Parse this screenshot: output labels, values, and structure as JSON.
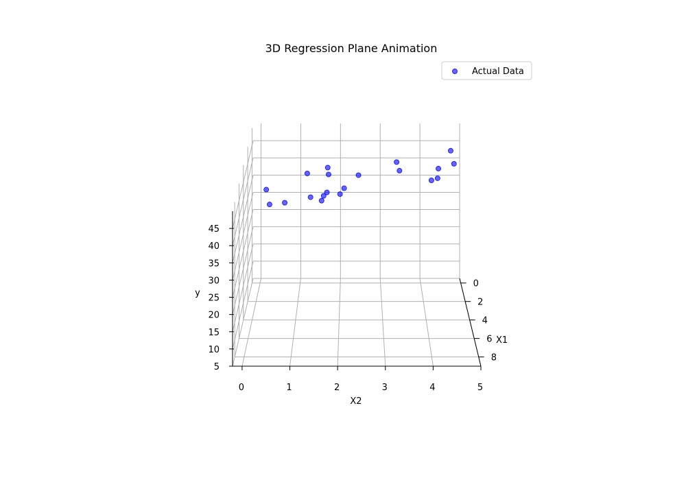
{
  "chart_data": {
    "type": "scatter",
    "projection": "3d",
    "title": "3D Regression Plane Animation",
    "xlabel": "X1",
    "ylabel": "X2",
    "zlabel": "y",
    "xlim": [
      -0.5,
      9
    ],
    "ylim": [
      -0.2,
      5.0
    ],
    "zlim": [
      5,
      50
    ],
    "xticks": [
      "0",
      "2",
      "4",
      "6",
      "8"
    ],
    "yticks": [
      "0",
      "1",
      "2",
      "3",
      "4",
      "5"
    ],
    "zticks": [
      "5",
      "10",
      "15",
      "20",
      "25",
      "30",
      "35",
      "40",
      "45"
    ],
    "grid": true,
    "legend": {
      "location": "upper right",
      "entries": [
        "Actual Data"
      ]
    },
    "series": [
      {
        "name": "Actual Data",
        "color": "#0000ff",
        "points": [
          {
            "x1": 1,
            "x2": 0.2,
            "y": 34.8
          },
          {
            "x1": 1,
            "x2": 0.28,
            "y": 30.5
          },
          {
            "x1": 1,
            "x2": 0.65,
            "y": 31.0
          },
          {
            "x1": 1,
            "x2": 1.2,
            "y": 39.5
          },
          {
            "x1": 1,
            "x2": 1.28,
            "y": 32.6
          },
          {
            "x1": 1,
            "x2": 1.55,
            "y": 31.6
          },
          {
            "x1": 1,
            "x2": 1.6,
            "y": 33.0
          },
          {
            "x1": 1,
            "x2": 1.68,
            "y": 34.0
          },
          {
            "x1": 1,
            "x2": 1.7,
            "y": 41.2
          },
          {
            "x1": 1,
            "x2": 1.72,
            "y": 39.2
          },
          {
            "x1": 1,
            "x2": 2.0,
            "y": 33.5
          },
          {
            "x1": 1,
            "x2": 2.1,
            "y": 35.2
          },
          {
            "x1": 1,
            "x2": 2.45,
            "y": 39.0
          },
          {
            "x1": 1,
            "x2": 3.38,
            "y": 42.8
          },
          {
            "x1": 1,
            "x2": 3.45,
            "y": 40.3
          },
          {
            "x1": 1,
            "x2": 4.23,
            "y": 37.5
          },
          {
            "x1": 1,
            "x2": 4.38,
            "y": 38.1
          },
          {
            "x1": 1,
            "x2": 4.4,
            "y": 40.9
          },
          {
            "x1": 1,
            "x2": 4.7,
            "y": 46.1
          },
          {
            "x1": 1,
            "x2": 4.78,
            "y": 42.3
          }
        ]
      }
    ]
  },
  "colors": {
    "points": "#0000ff",
    "grid": "#b0b0b0",
    "axis": "#000000"
  }
}
